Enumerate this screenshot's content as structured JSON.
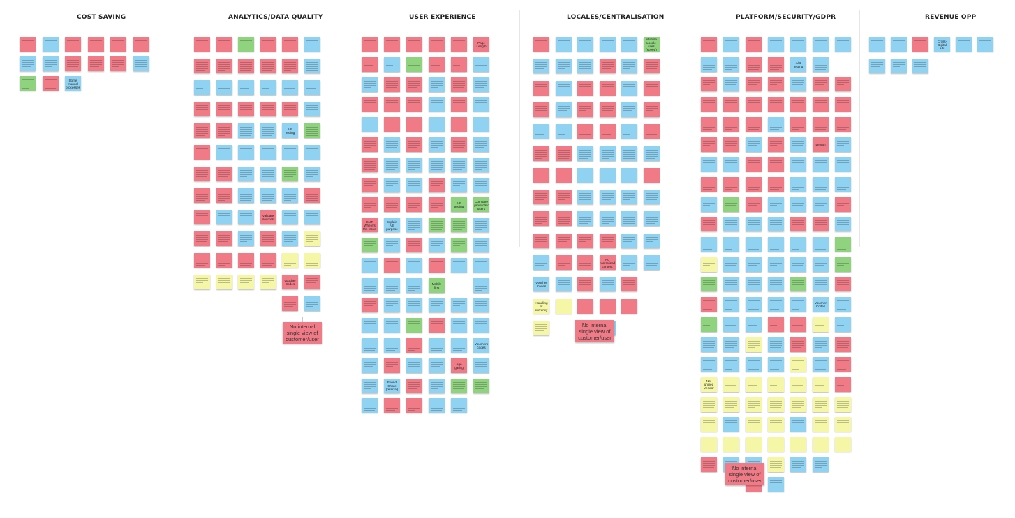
{
  "board": {
    "colors": {
      "pink": "#f07a86",
      "blue": "#8fd2f2",
      "green": "#8fd37e",
      "yellow": "#f6f7a6"
    },
    "columns": [
      {
        "key": "cost",
        "title": "COST SAVING",
        "readable": [
          {
            "col": 2,
            "row": 2,
            "text": "Some manual processes"
          },
          {
            "col": 2,
            "row": 3,
            "text": "How much is worth for Vendor"
          },
          {
            "col": 4,
            "row": 2,
            "text": "Multiple variants to manage"
          },
          {
            "col": 1,
            "row": 3,
            "text": "No unified reporting"
          }
        ],
        "grid": [
          "PBPPPP",
          "BBPPPB",
          "GPB"
        ]
      },
      {
        "key": "analytics",
        "title": "ANALYTICS/DATA QUALITY",
        "readable": [
          {
            "col": 4,
            "row": 4,
            "text": "A/B testing"
          },
          {
            "col": 3,
            "row": 8,
            "text": "Validate sources"
          },
          {
            "col": 4,
            "row": 11,
            "text": "Voucher Codes"
          }
        ],
        "grid": [
          "PPGPPB",
          "PPPPPB",
          "BBBBBB",
          "PPPPPB",
          "PPBBBG",
          "PBBBBB",
          "PPBBGB",
          "PPBBBP",
          "PBBPBB",
          "PPBPBY",
          "PPPPYY",
          "YYYYPP",
          "    PB"
        ],
        "big": {
          "text": "No internal single view of customer/user"
        }
      },
      {
        "key": "ux",
        "title": "USER EXPERIENCE",
        "readable": [
          {
            "col": 5,
            "row": 0,
            "text": "Page Length"
          },
          {
            "col": 5,
            "row": 8,
            "text": "Compare products / users"
          },
          {
            "col": 4,
            "row": 8,
            "text": "A/B testing"
          },
          {
            "col": 0,
            "row": 9,
            "text": "CUT: Where's the focus"
          },
          {
            "col": 1,
            "row": 9,
            "text": "Explain A/B purpose"
          },
          {
            "col": 3,
            "row": 12,
            "text": "Mobile first"
          },
          {
            "col": 1,
            "row": 17,
            "text": "Friend Share (referral)"
          },
          {
            "col": 5,
            "row": 15,
            "text": "Vouchers codes"
          },
          {
            "col": 4,
            "row": 16,
            "text": "Age gating"
          }
        ],
        "grid": [
          "PPPPPP",
          "PBGPPB",
          "BPPBPB",
          "PPPBPB",
          "BPPBPB",
          "PBPBPB",
          "PBBBBB",
          "PBBPBB",
          "PPPPGG",
          "PBBGGB",
          "GBPBGB",
          "BPBPBB",
          "BBBG B",
          "PBBBBB",
          "BBGPBB",
          "BBPBBB",
          "BPBBPB",
          "BBPBGG",
          "BPPBB "
        ]
      },
      {
        "key": "locales",
        "title": "LOCALES/CENTRALISATION",
        "readable": [
          {
            "col": 5,
            "row": 0,
            "text": "Multiple Locale sites (speed)"
          },
          {
            "col": 0,
            "row": 11,
            "text": "Voucher Codes"
          },
          {
            "col": 0,
            "row": 12,
            "text": "Handling of currency"
          },
          {
            "col": 3,
            "row": 10,
            "text": "No centralised content"
          }
        ],
        "grid": [
          "PBBBBG",
          "BBBPBP",
          "PBPPBP",
          "PBPPBP",
          "BBPPBP",
          "PPBBBB",
          "PPBBBP",
          "PPBBBB",
          "PPBBBB",
          "PPPPBB",
          "BPPPBB",
          "BBPBP ",
          "YYPPP ",
          "Y  B  "
        ],
        "big": {
          "text": "No internal single view of customer/user"
        }
      },
      {
        "key": "platform",
        "title": "PLATFORM/SECURITY/GDPR",
        "readable": [
          {
            "col": 4,
            "row": 1,
            "text": "A/B testing"
          },
          {
            "col": 5,
            "row": 5,
            "text": "Length"
          },
          {
            "col": 5,
            "row": 13,
            "text": "Voucher Codes"
          },
          {
            "col": 0,
            "row": 17,
            "text": "Not unified Vendor"
          }
        ],
        "grid": [
          "PBPBBBB",
          "BBPPBB",
          "PBPPBPP",
          "PPPPPPP",
          "PPPBPPP",
          "PPBPBPB",
          "BBPPBBB",
          "PPPPBBB",
          "BGPBBBP",
          "PBBBPPB",
          "BBBBBBG",
          "YBBBBBG",
          "GBBBGBP",
          "PBBBBBB",
          "GBBPPYB",
          "BBYBPBP",
          "BBBBYBP",
          "YYYYYYP",
          "YYYYYYY",
          "YBYYBYY",
          "YYYYYYY",
          "PBBYBB",
          "  PB  "
        ],
        "big": {
          "text": "No internal single view of customer/user"
        }
      },
      {
        "key": "revenue",
        "title": "REVENUE OPP",
        "readable": [
          {
            "col": 3,
            "row": 0,
            "text": "Cross-Digital Ads"
          }
        ],
        "grid": [
          "BBPBBB",
          "BBB"
        ]
      }
    ]
  }
}
